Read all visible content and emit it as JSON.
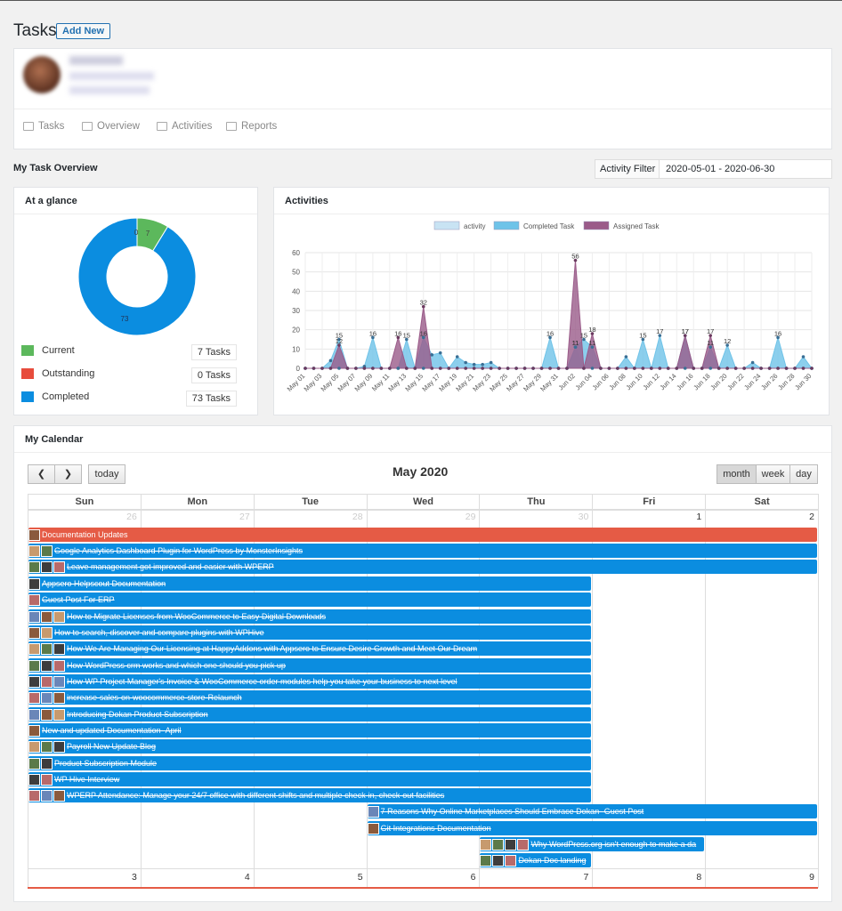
{
  "header": {
    "title": "Tasks",
    "add_new": "Add New"
  },
  "nav": [
    "Tasks",
    "Overview",
    "Activities",
    "Reports"
  ],
  "overview": {
    "title": "My Task Overview",
    "filter_label": "Activity Filter",
    "filter_value": "2020-05-01 - 2020-06-30"
  },
  "glance": {
    "title": "At a glance",
    "donut": {
      "current": 7,
      "outstanding": 0,
      "completed": 73,
      "labels": [
        "0",
        "7",
        "73"
      ]
    },
    "legend": [
      {
        "label": "Current",
        "count": "7 Tasks",
        "color": "#5cb85c"
      },
      {
        "label": "Outstanding",
        "count": "0 Tasks",
        "color": "#e74c3c"
      },
      {
        "label": "Completed",
        "count": "73 Tasks",
        "color": "#0b8de0"
      }
    ]
  },
  "activities": {
    "title": "Activities"
  },
  "chart_data": {
    "type": "area",
    "legend": [
      "activity",
      "Completed Task",
      "Assigned Task"
    ],
    "ylim": [
      0,
      60
    ],
    "yticks": [
      0,
      10,
      20,
      30,
      40,
      50,
      60
    ],
    "x": [
      "May 01",
      "May 02",
      "May 03",
      "May 04",
      "May 05",
      "May 06",
      "May 07",
      "May 08",
      "May 09",
      "May 10",
      "May 11",
      "May 12",
      "May 13",
      "May 14",
      "May 15",
      "May 16",
      "May 17",
      "May 18",
      "May 19",
      "May 20",
      "May 21",
      "May 22",
      "May 23",
      "May 24",
      "May 25",
      "May 26",
      "May 27",
      "May 28",
      "May 29",
      "May 30",
      "May 31",
      "Jun 01",
      "Jun 02",
      "Jun 03",
      "Jun 04",
      "Jun 05",
      "Jun 06",
      "Jun 07",
      "Jun 08",
      "Jun 09",
      "Jun 10",
      "Jun 11",
      "Jun 12",
      "Jun 13",
      "Jun 14",
      "Jun 15",
      "Jun 16",
      "Jun 17",
      "Jun 18",
      "Jun 19",
      "Jun 20",
      "Jun 21",
      "Jun 22",
      "Jun 23",
      "Jun 24",
      "Jun 25",
      "Jun 26",
      "Jun 27",
      "Jun 28",
      "Jun 29",
      "Jun 30"
    ],
    "xticks": [
      "May 01",
      "May 03",
      "May 05",
      "May 07",
      "May 09",
      "May 11",
      "May 13",
      "May 15",
      "May 17",
      "May 19",
      "May 21",
      "May 23",
      "May 25",
      "May 27",
      "May 29",
      "May 31",
      "Jun 02",
      "Jun 04",
      "Jun 06",
      "Jun 08",
      "Jun 10",
      "Jun 12",
      "Jun 14",
      "Jun 16",
      "Jun 18",
      "Jun 20",
      "Jun 22",
      "Jun 24",
      "Jun 26",
      "Jun 28",
      "Jun 30"
    ],
    "series": [
      {
        "name": "activity",
        "color": "#c8e3f3",
        "values": [
          0,
          0,
          0,
          0,
          0,
          0,
          0,
          0,
          0,
          0,
          0,
          0,
          0,
          0,
          0,
          0,
          0,
          0,
          0,
          0,
          0,
          0,
          0,
          0,
          0,
          0,
          0,
          0,
          0,
          0,
          0,
          0,
          11,
          0,
          0,
          0,
          0,
          0,
          0,
          0,
          0,
          0,
          0,
          0,
          0,
          0,
          0,
          0,
          0,
          0,
          0,
          0,
          0,
          0,
          0,
          0,
          0,
          0,
          0,
          0,
          0
        ]
      },
      {
        "name": "Completed Task",
        "color": "#6fc3e8",
        "values": [
          0,
          0,
          0,
          4,
          15,
          0,
          0,
          1,
          16,
          0,
          0,
          0,
          15,
          0,
          16,
          7,
          8,
          0,
          6,
          3,
          2,
          2,
          3,
          0,
          0,
          0,
          0,
          0,
          0,
          16,
          0,
          0,
          11,
          15,
          11,
          0,
          0,
          0,
          6,
          0,
          15,
          0,
          17,
          0,
          0,
          17,
          0,
          0,
          11,
          0,
          12,
          0,
          0,
          3,
          0,
          0,
          16,
          0,
          0,
          6,
          0
        ]
      },
      {
        "name": "Assigned Task",
        "color": "#9a5b89",
        "values": [
          0,
          0,
          0,
          0,
          12,
          0,
          0,
          0,
          0,
          0,
          0,
          16,
          0,
          0,
          32,
          0,
          0,
          0,
          0,
          0,
          0,
          0,
          0,
          0,
          0,
          0,
          0,
          0,
          0,
          0,
          0,
          0,
          56,
          0,
          18,
          0,
          0,
          0,
          0,
          0,
          0,
          0,
          0,
          0,
          0,
          17,
          0,
          0,
          17,
          0,
          0,
          0,
          0,
          0,
          0,
          0,
          0,
          0,
          0,
          0,
          0
        ]
      }
    ]
  },
  "calendar": {
    "section_title": "My Calendar",
    "title": "May 2020",
    "today": "today",
    "views": [
      "month",
      "week",
      "day"
    ],
    "days": [
      "Sun",
      "Mon",
      "Tue",
      "Wed",
      "Thu",
      "Fri",
      "Sat"
    ],
    "week1": [
      "26",
      "27",
      "28",
      "29",
      "30",
      "1",
      "2"
    ],
    "week2": [
      "3",
      "4",
      "5",
      "6",
      "7",
      "8",
      "9"
    ],
    "events": [
      {
        "title": "Documentation Updates",
        "start": 0,
        "end": 7,
        "color": "#e55b45",
        "avatars": 1,
        "done": false
      },
      {
        "title": "Google Analytics Dashboard Plugin for WordPress by MonsterInsights",
        "start": 0,
        "end": 7,
        "color": "#0b8de0",
        "avatars": 2,
        "done": true
      },
      {
        "title": "Leave management got improved and easier with WPERP",
        "start": 0,
        "end": 7,
        "color": "#0b8de0",
        "avatars": 3,
        "done": true
      },
      {
        "title": "Appsero Helpscout Documentation",
        "start": 0,
        "end": 5,
        "color": "#0b8de0",
        "avatars": 1,
        "done": true
      },
      {
        "title": "Guest Post For ERP",
        "start": 0,
        "end": 5,
        "color": "#0b8de0",
        "avatars": 1,
        "done": true
      },
      {
        "title": "How to Migrate Licenses from WooCommerce to Easy Digital Downloads",
        "start": 0,
        "end": 5,
        "color": "#0b8de0",
        "avatars": 3,
        "done": true
      },
      {
        "title": "How to search, discover and compare plugins with WPHive",
        "start": 0,
        "end": 5,
        "color": "#0b8de0",
        "avatars": 2,
        "done": true
      },
      {
        "title": "How We Are Managing Our Licensing at HappyAddons with Appsero to Ensure Desire Growth and Meet Our Dream",
        "start": 0,
        "end": 5,
        "color": "#0b8de0",
        "avatars": 3,
        "done": true
      },
      {
        "title": "How WordPress crm works and which one should you pick up",
        "start": 0,
        "end": 5,
        "color": "#0b8de0",
        "avatars": 3,
        "done": true
      },
      {
        "title": "How WP Project Manager's Invoice & WooCommerce order modules help you take your business to next level",
        "start": 0,
        "end": 5,
        "color": "#0b8de0",
        "avatars": 3,
        "done": true
      },
      {
        "title": "increase-sales-on-woocommerce-store-Relaunch",
        "start": 0,
        "end": 5,
        "color": "#0b8de0",
        "avatars": 3,
        "done": true
      },
      {
        "title": "Introducing Dokan Product Subscription",
        "start": 0,
        "end": 5,
        "color": "#0b8de0",
        "avatars": 3,
        "done": true
      },
      {
        "title": "New and updated Documentation- April",
        "start": 0,
        "end": 5,
        "color": "#0b8de0",
        "avatars": 1,
        "done": true
      },
      {
        "title": "Payroll New Update Blog",
        "start": 0,
        "end": 5,
        "color": "#0b8de0",
        "avatars": 3,
        "done": true
      },
      {
        "title": "Product Subscription Module",
        "start": 0,
        "end": 5,
        "color": "#0b8de0",
        "avatars": 2,
        "done": true
      },
      {
        "title": "WP Hive Interview",
        "start": 0,
        "end": 5,
        "color": "#0b8de0",
        "avatars": 2,
        "done": true
      },
      {
        "title": "WPERP Attendance: Manage your 24/7 office with different shifts and multiple check-in, check-out facilities",
        "start": 0,
        "end": 5,
        "color": "#0b8de0",
        "avatars": 3,
        "done": true
      },
      {
        "title": "7 Reasons Why Online Marketplaces Should Embrace Dokan- Guest Post",
        "start": 3,
        "end": 7,
        "color": "#0b8de0",
        "avatars": 1,
        "done": true
      },
      {
        "title": "Git Integrations Documentation",
        "start": 3,
        "end": 7,
        "color": "#0b8de0",
        "avatars": 1,
        "done": true
      },
      {
        "title": "Why WordPress.org isn't enough to make a da",
        "start": 4,
        "end": 6,
        "color": "#0b8de0",
        "avatars": 4,
        "done": true
      },
      {
        "title": "Dokan Doc landing",
        "start": 4,
        "end": 5,
        "color": "#0b8de0",
        "avatars": 3,
        "done": true
      }
    ]
  }
}
